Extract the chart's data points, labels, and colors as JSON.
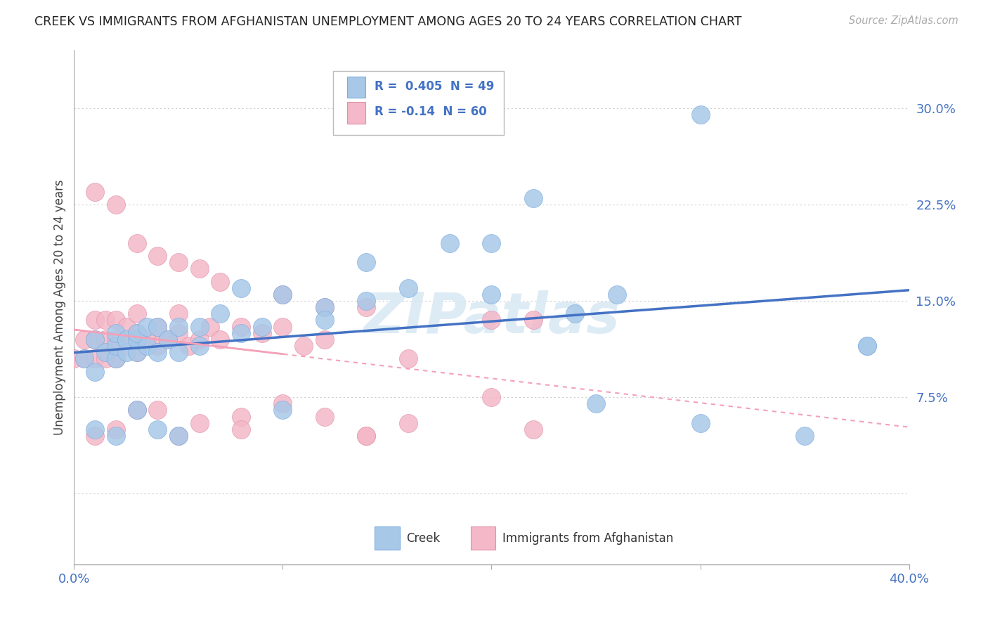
{
  "title": "CREEK VS IMMIGRANTS FROM AFGHANISTAN UNEMPLOYMENT AMONG AGES 20 TO 24 YEARS CORRELATION CHART",
  "source": "Source: ZipAtlas.com",
  "ylabel": "Unemployment Among Ages 20 to 24 years",
  "xlim": [
    0.0,
    0.4
  ],
  "ylim": [
    -0.055,
    0.345
  ],
  "yticks": [
    0.0,
    0.075,
    0.15,
    0.225,
    0.3
  ],
  "ytick_labels": [
    "",
    "7.5%",
    "15.0%",
    "22.5%",
    "30.0%"
  ],
  "xticks": [
    0.0,
    0.1,
    0.2,
    0.3,
    0.4
  ],
  "xtick_labels": [
    "0.0%",
    "",
    "",
    "",
    "40.0%"
  ],
  "creek_color": "#a8c8e8",
  "afghanistan_color": "#f4b8c8",
  "creek_line_color": "#4472c4",
  "afghanistan_line_color": "#f4a0b8",
  "creek_R": 0.405,
  "creek_N": 49,
  "afghanistan_R": -0.14,
  "afghanistan_N": 60,
  "watermark": "ZIPatlas",
  "background_color": "#ffffff",
  "grid_color": "#cccccc",
  "creek_scatter_x": [
    0.005,
    0.01,
    0.01,
    0.015,
    0.02,
    0.02,
    0.02,
    0.025,
    0.025,
    0.03,
    0.03,
    0.03,
    0.035,
    0.035,
    0.04,
    0.04,
    0.045,
    0.05,
    0.05,
    0.06,
    0.07,
    0.08,
    0.09,
    0.1,
    0.12,
    0.14,
    0.16,
    0.18,
    0.2,
    0.22,
    0.24,
    0.26,
    0.3,
    0.35,
    0.38,
    0.01,
    0.02,
    0.03,
    0.04,
    0.05,
    0.06,
    0.08,
    0.1,
    0.12,
    0.14,
    0.2,
    0.25,
    0.3,
    0.38
  ],
  "creek_scatter_y": [
    0.105,
    0.095,
    0.12,
    0.11,
    0.105,
    0.115,
    0.125,
    0.11,
    0.12,
    0.11,
    0.12,
    0.125,
    0.115,
    0.13,
    0.11,
    0.13,
    0.12,
    0.13,
    0.11,
    0.13,
    0.14,
    0.16,
    0.13,
    0.155,
    0.145,
    0.18,
    0.16,
    0.195,
    0.155,
    0.23,
    0.14,
    0.155,
    0.295,
    0.045,
    0.115,
    0.05,
    0.045,
    0.065,
    0.05,
    0.045,
    0.115,
    0.125,
    0.065,
    0.135,
    0.15,
    0.195,
    0.07,
    0.055,
    0.115
  ],
  "afghanistan_scatter_x": [
    0.0,
    0.005,
    0.005,
    0.01,
    0.01,
    0.01,
    0.015,
    0.015,
    0.015,
    0.02,
    0.02,
    0.02,
    0.025,
    0.025,
    0.03,
    0.03,
    0.03,
    0.035,
    0.04,
    0.04,
    0.045,
    0.05,
    0.05,
    0.055,
    0.06,
    0.065,
    0.07,
    0.08,
    0.09,
    0.1,
    0.11,
    0.12,
    0.14,
    0.16,
    0.2,
    0.22,
    0.01,
    0.02,
    0.03,
    0.04,
    0.05,
    0.06,
    0.07,
    0.08,
    0.1,
    0.12,
    0.14,
    0.16,
    0.2,
    0.1,
    0.12,
    0.14,
    0.01,
    0.02,
    0.03,
    0.04,
    0.05,
    0.06,
    0.22,
    0.08
  ],
  "afghanistan_scatter_y": [
    0.105,
    0.105,
    0.12,
    0.105,
    0.12,
    0.135,
    0.105,
    0.12,
    0.135,
    0.105,
    0.12,
    0.135,
    0.115,
    0.13,
    0.11,
    0.125,
    0.14,
    0.12,
    0.115,
    0.13,
    0.12,
    0.125,
    0.14,
    0.115,
    0.12,
    0.13,
    0.12,
    0.13,
    0.125,
    0.13,
    0.115,
    0.12,
    0.145,
    0.105,
    0.135,
    0.135,
    0.235,
    0.225,
    0.195,
    0.185,
    0.18,
    0.175,
    0.165,
    0.06,
    0.07,
    0.06,
    0.045,
    0.055,
    0.075,
    0.155,
    0.145,
    0.045,
    0.045,
    0.05,
    0.065,
    0.065,
    0.045,
    0.055,
    0.05,
    0.05
  ]
}
